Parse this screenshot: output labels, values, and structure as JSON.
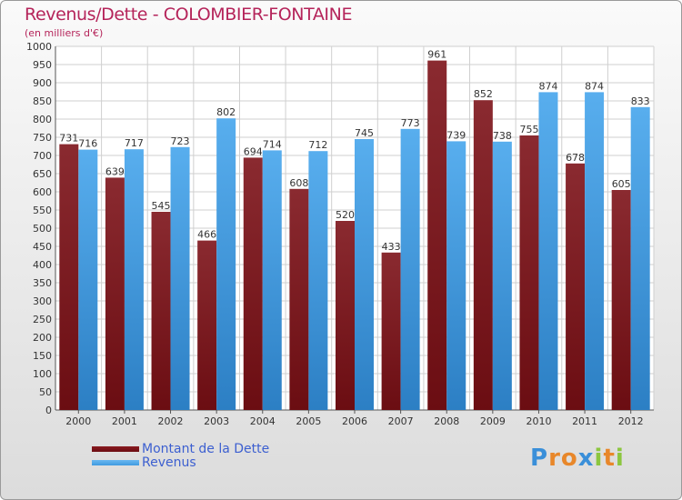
{
  "header": {
    "title": "Revenus/Dette - COLOMBIER-FONTAINE",
    "subtitle": "(en milliers d'€)"
  },
  "chart_data": {
    "type": "bar",
    "title": "Revenus/Dette - COLOMBIER-FONTAINE",
    "subtitle": "(en milliers d'€)",
    "xlabel": "",
    "ylabel": "",
    "ylim": [
      0,
      1000
    ],
    "ytick_step": 50,
    "grid": true,
    "categories": [
      "2000",
      "2001",
      "2002",
      "2003",
      "2004",
      "2005",
      "2006",
      "2007",
      "2008",
      "2009",
      "2010",
      "2011",
      "2012"
    ],
    "series": [
      {
        "name": "Montant de la Dette",
        "color": "#6b0d12",
        "values": [
          731,
          639,
          545,
          466,
          694,
          608,
          520,
          433,
          961,
          852,
          755,
          678,
          605
        ]
      },
      {
        "name": "Revenus",
        "color": "#3f9be0",
        "values": [
          716,
          717,
          723,
          802,
          714,
          712,
          745,
          773,
          739,
          738,
          874,
          874,
          833
        ]
      }
    ],
    "legend_position": "bottom-left"
  },
  "legend": {
    "debt_label": "Montant de la Dette",
    "revenue_label": "Revenus",
    "debt_color": "#6b0d12",
    "revenue_color": "#3f9be0"
  },
  "logo": {
    "text": "Proxiti",
    "letters": [
      "P",
      "r",
      "o",
      "x",
      "i",
      "t",
      "i"
    ],
    "colors": [
      "#3a8fd9",
      "#e8872a",
      "#e8872a",
      "#3a8fd9",
      "#8cc63f",
      "#e8872a",
      "#8cc63f"
    ]
  }
}
